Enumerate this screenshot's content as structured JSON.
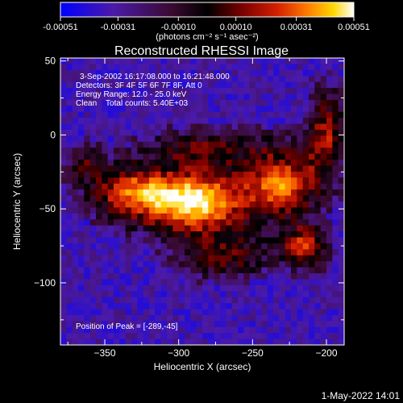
{
  "chart_data": {
    "type": "heatmap",
    "title": "Reconstructed RHESSI Image",
    "colorbar": {
      "tick_labels": [
        "-0.00051",
        "-0.00031",
        "-0.00010",
        "0.00010",
        "0.00031",
        "0.00051"
      ],
      "tick_values": [
        -0.00051,
        -0.00031,
        -0.0001,
        0.0001,
        0.00031,
        0.00051
      ],
      "range": [
        -0.00051,
        0.00051
      ],
      "units_label": "(photons cm⁻² s⁻¹ asec⁻²)",
      "colormap": [
        "#0000ff",
        "#4b1aa8",
        "#3a0a30",
        "#000000",
        "#7a0000",
        "#d42000",
        "#ff7a00",
        "#ffd700",
        "#ffffff"
      ]
    },
    "annotations": {
      "time_range": "3-Sep-2002 16:17:08.000 to 16:21:48.000",
      "detectors": "Detectors: 3F 4F 5F 6F 7F 8F, Att 0",
      "energy": "Energy Range: 12.0 - 25.0 keV",
      "method": "Clean    Total counts: 5.40E+03",
      "peak": "Position of Peak = [-289,-45]"
    },
    "peak": {
      "x": -289,
      "y": -45
    },
    "xlabel": "Heliocentric X (arcsec)",
    "ylabel": "Heliocentric Y (arcsec)",
    "xlim": [
      -380,
      -188
    ],
    "ylim": [
      -142,
      52
    ],
    "x_ticks": [
      -350,
      -300,
      -250,
      -200
    ],
    "x_tick_labels": [
      "−350",
      "−300",
      "−250",
      "−200"
    ],
    "y_ticks": [
      50,
      0,
      -50,
      -100
    ],
    "y_tick_labels": [
      "50",
      "0",
      "−50",
      "−100"
    ],
    "sources": [
      {
        "x": -289,
        "y": -45,
        "sx": 26,
        "sy": 16,
        "amp": 1.0
      },
      {
        "x": -230,
        "y": -33,
        "sx": 17,
        "sy": 16,
        "amp": 0.78
      },
      {
        "x": -335,
        "y": -38,
        "sx": 20,
        "sy": 13,
        "amp": 0.62
      },
      {
        "x": -215,
        "y": -75,
        "sx": 11,
        "sy": 10,
        "amp": 0.68
      },
      {
        "x": -200,
        "y": 0,
        "sx": 10,
        "sy": 22,
        "amp": 0.58
      },
      {
        "x": -280,
        "y": -8,
        "sx": 30,
        "sy": 9,
        "amp": 0.42
      },
      {
        "x": -268,
        "y": -82,
        "sx": 22,
        "sy": 11,
        "amp": 0.45
      },
      {
        "x": -365,
        "y": -18,
        "sx": 9,
        "sy": 9,
        "amp": 0.35
      }
    ],
    "timestamp": "1-May-2022 14:01"
  }
}
